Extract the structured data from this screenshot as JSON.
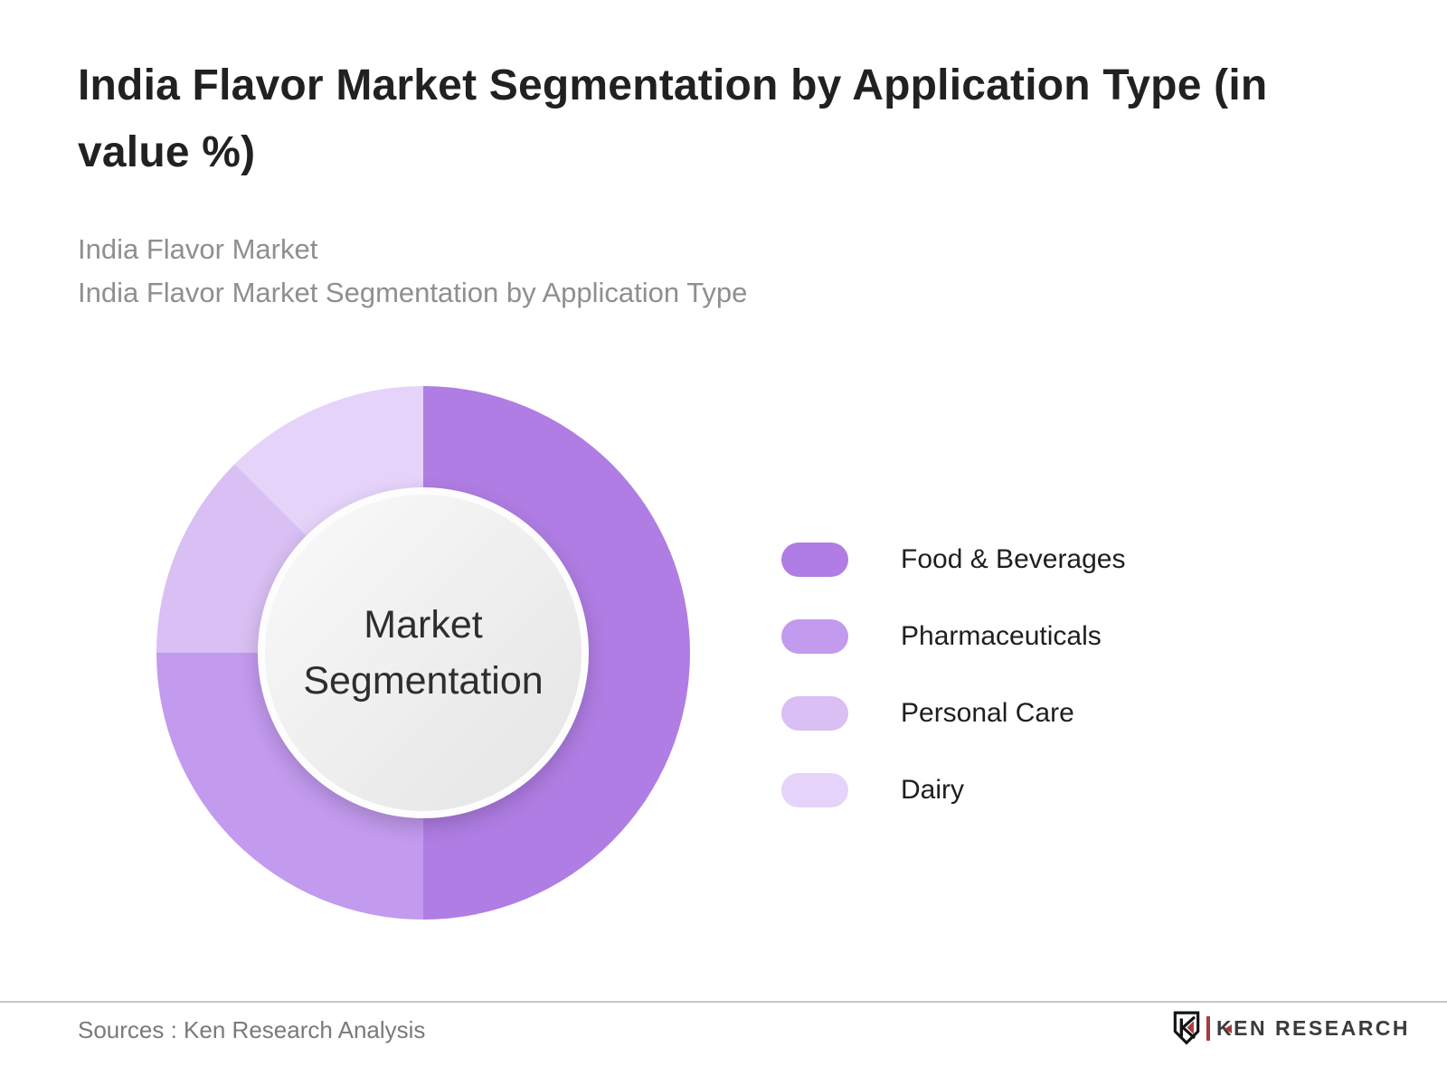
{
  "page": {
    "background": "#ffffff"
  },
  "header": {
    "title": "India Flavor Market Segmentation by Application Type (in value %)",
    "subtitle_lines": [
      "India Flavor Market",
      "India Flavor Market Segmentation by Application Type"
    ]
  },
  "chart_data": {
    "type": "pie",
    "subtype": "donut",
    "title": "India Flavor Market Segmentation by Application Type (in value %)",
    "unit": "value %",
    "categories": [
      "Food & Beverages",
      "Pharmaceuticals",
      "Personal Care",
      "Dairy"
    ],
    "values": [
      50,
      25,
      12.5,
      12.5
    ],
    "colors": [
      "#af7de3",
      "#c29aee",
      "#d9bff3",
      "#e5d3f9"
    ],
    "start_angle_deg": 0,
    "direction": "clockwise",
    "hole_ratio": 0.65,
    "legend_position": "right",
    "data_labels": false,
    "center_label": "Market Segmentation",
    "center_label_lines": [
      "Market",
      "Segmentation"
    ]
  },
  "footer": {
    "sources_label": "Sources : Ken Research Analysis",
    "brand_name": "KEN RESEARCH"
  }
}
